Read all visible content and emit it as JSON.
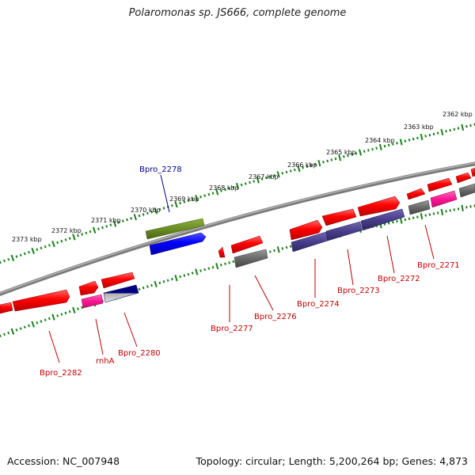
{
  "title": "Polaromonas sp. JS666, complete genome",
  "footer": {
    "accession": "Accession: NC_007948",
    "summary": "Topology: circular; Length: 5,200,264 bp; Genes: 4,873"
  },
  "scale_labels": [
    "2373 kbp",
    "2372 kbp",
    "2371 kbp",
    "2370 kbp",
    "2369 kbp",
    "2368 kbp",
    "2367 kbp",
    "2366 kbp",
    "2365 kbp",
    "2364 kbp",
    "2363 kbp",
    "2362 kbp"
  ],
  "gene_labels": {
    "bpro_2278": "Bpro_2278",
    "bpro_2282": "Bpro_2282",
    "rnha": "rnhA",
    "bpro_2280": "Bpro_2280",
    "bpro_2277": "Bpro_2277",
    "bpro_2276": "Bpro_2276",
    "bpro_2274": "Bpro_2274",
    "bpro_2273": "Bpro_2273",
    "bpro_2272": "Bpro_2272",
    "bpro_2271": "Bpro_2271"
  },
  "colors": {
    "cds": "#ff0000",
    "highlight": "#1a1aff",
    "label_default": "#c00000",
    "label_highlight": "#00008b",
    "backbone": "#808080",
    "ticks": "#1a7f1a",
    "olive": "#6b8e23",
    "slate": "#483d8b",
    "pink": "#ff1493",
    "gray": "#696969",
    "navy": "#000080"
  }
}
